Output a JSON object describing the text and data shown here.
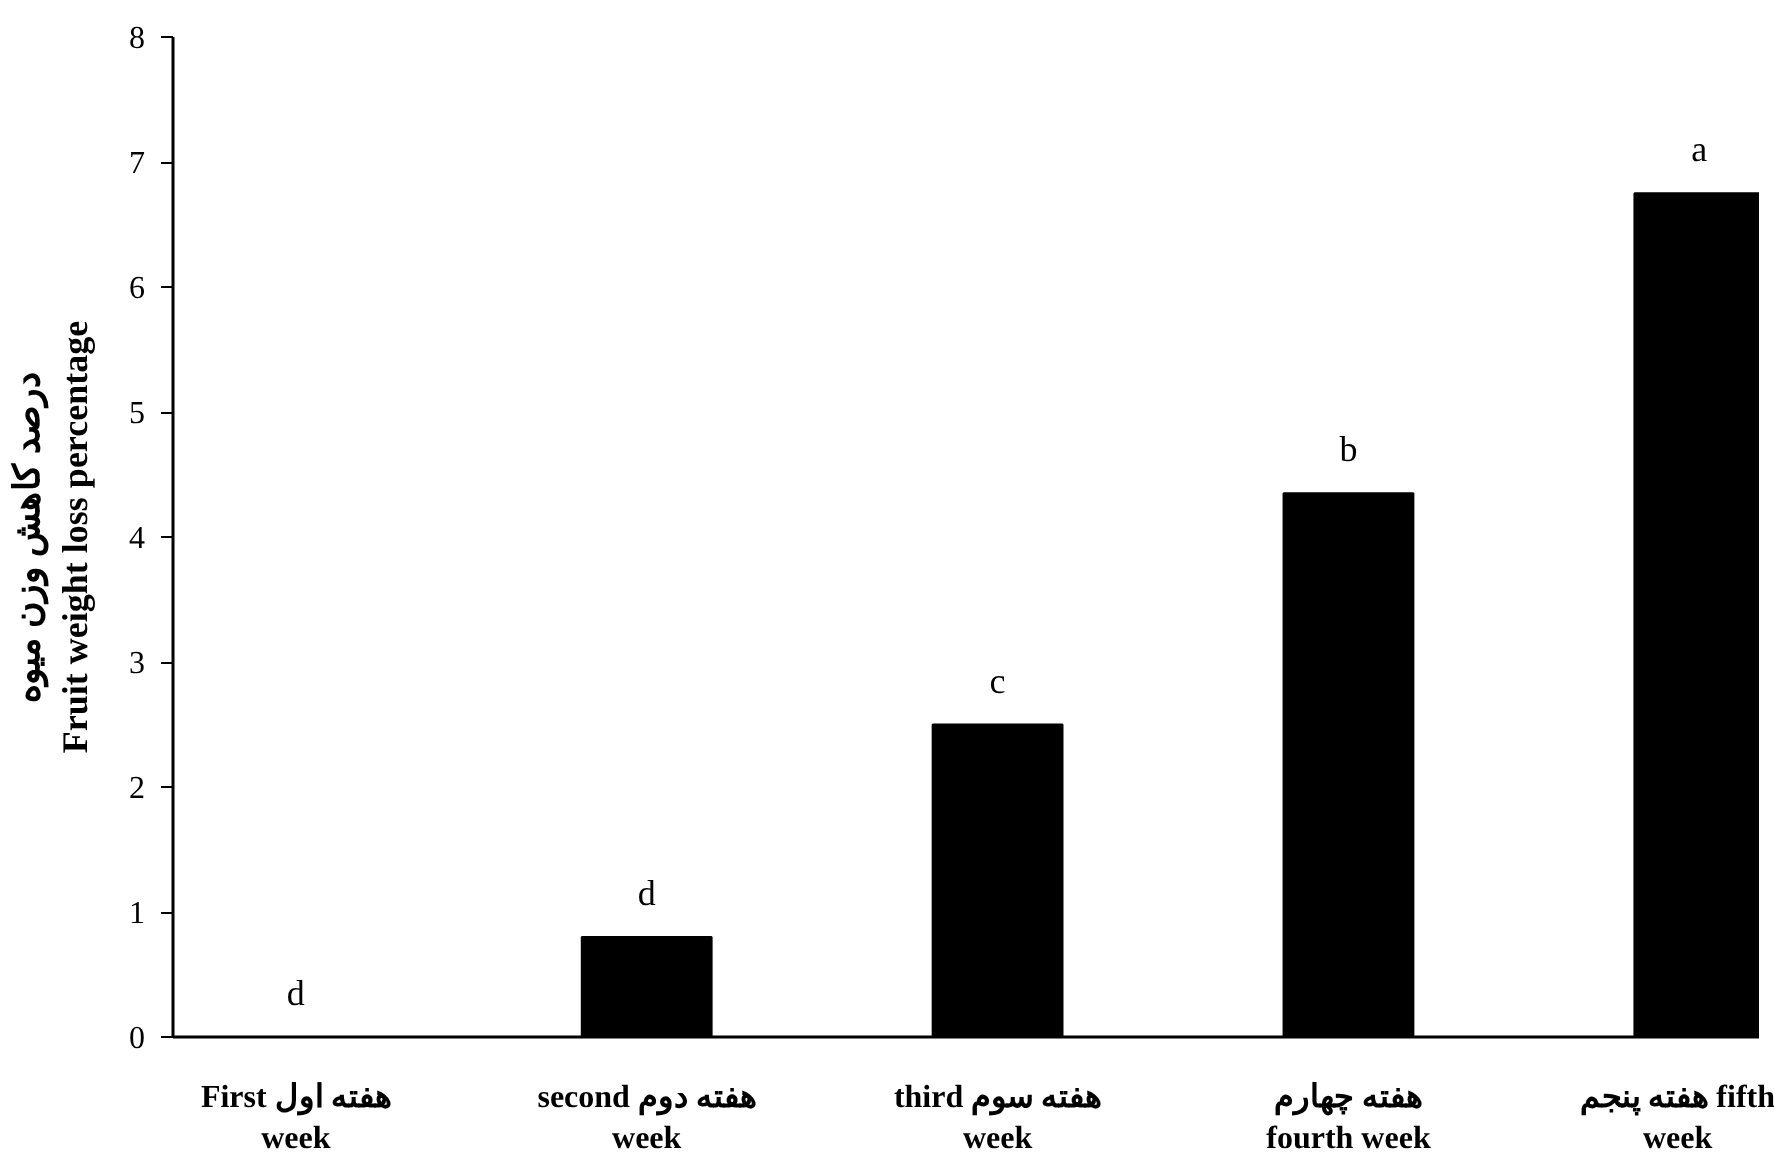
{
  "chart_data": {
    "type": "bar",
    "ylabel": "درصد کاهش وزن میوه\nFruit weight loss percentage",
    "categories": [
      "First هفته اول\nweek",
      "second هفته دوم\nweek",
      "third هفته سوم\nweek",
      "هفته چهارم\nfourth week",
      "هفته پنجم fifth\nweek"
    ],
    "values": [
      0,
      0.8,
      2.5,
      4.35,
      6.75
    ],
    "color": "#000000",
    "ylim": [
      0,
      8
    ],
    "yticks": [
      0,
      1,
      2,
      3,
      4,
      5,
      6,
      7,
      8
    ],
    "grid": false,
    "annotations": [
      "d",
      "d",
      "c",
      "b",
      "a"
    ]
  }
}
